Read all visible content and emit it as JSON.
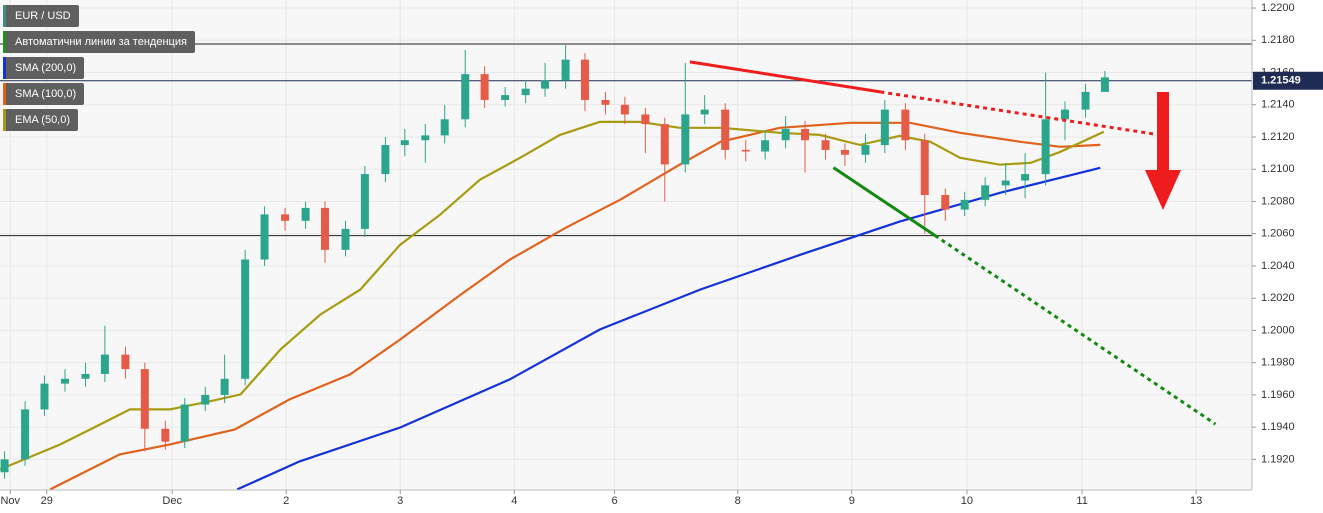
{
  "chart_data": {
    "type": "candlestick",
    "xlim": [
      0,
      10.98
    ],
    "ylim": [
      1.1901,
      1.2205
    ],
    "grid": true,
    "xticks": [
      {
        "value": 0.09,
        "label": "Nov"
      },
      {
        "value": 0.41,
        "label": "29"
      },
      {
        "value": 1.51,
        "label": "Dec"
      },
      {
        "value": 2.51,
        "label": "2"
      },
      {
        "value": 3.51,
        "label": "3"
      },
      {
        "value": 4.51,
        "label": "4"
      },
      {
        "value": 5.39,
        "label": "6"
      },
      {
        "value": 6.47,
        "label": "8"
      },
      {
        "value": 7.47,
        "label": "9"
      },
      {
        "value": 8.48,
        "label": "10"
      },
      {
        "value": 9.49,
        "label": "11"
      },
      {
        "value": 10.49,
        "label": "13"
      }
    ],
    "yticks": [
      {
        "value": 1.192,
        "label": "1.1920"
      },
      {
        "value": 1.194,
        "label": "1.1940"
      },
      {
        "value": 1.196,
        "label": "1.1960"
      },
      {
        "value": 1.198,
        "label": "1.1980"
      },
      {
        "value": 1.2,
        "label": "1.2000"
      },
      {
        "value": 1.202,
        "label": "1.2020"
      },
      {
        "value": 1.204,
        "label": "1.2040"
      },
      {
        "value": 1.206,
        "label": "1.2060"
      },
      {
        "value": 1.208,
        "label": "1.2080"
      },
      {
        "value": 1.21,
        "label": "1.2100"
      },
      {
        "value": 1.212,
        "label": "1.2120"
      },
      {
        "value": 1.214,
        "label": "1.2140"
      },
      {
        "value": 1.216,
        "label": "1.2160"
      },
      {
        "value": 1.218,
        "label": "1.2180"
      },
      {
        "value": 1.22,
        "label": "1.2200"
      }
    ],
    "symbol": {
      "name": "EUR / USD",
      "color": "#3f8f80"
    },
    "trend_study": {
      "name": "Автоматични линии за тенденция",
      "color": "#1f8f1f"
    },
    "last_price": 1.21549,
    "last_price_color": "#1e2b52",
    "levels": [
      1.21777,
      1.20588
    ],
    "level_color": "#222222",
    "up_color": "#2ca58d",
    "down_color": "#e55b48",
    "candles": {
      "x": [
        0.04,
        0.22,
        0.39,
        0.57,
        0.75,
        0.92,
        1.1,
        1.27,
        1.45,
        1.62,
        1.8,
        1.97,
        2.15,
        2.32,
        2.5,
        2.68,
        2.85,
        3.03,
        3.2,
        3.38,
        3.55,
        3.73,
        3.9,
        4.08,
        4.25,
        4.43,
        4.61,
        4.78,
        4.96,
        5.13,
        5.31,
        5.48,
        5.66,
        5.83,
        6.01,
        6.18,
        6.36,
        6.54,
        6.71,
        6.89,
        7.06,
        7.24,
        7.41,
        7.59,
        7.76,
        7.94,
        8.11,
        8.29,
        8.46,
        8.64,
        8.82,
        8.99,
        9.17,
        9.34,
        9.52,
        9.69
      ],
      "open": [
        1.1912,
        1.192,
        1.1951,
        1.1967,
        1.197,
        1.1973,
        1.1985,
        1.1976,
        1.1939,
        1.1931,
        1.1954,
        1.196,
        1.197,
        1.2044,
        1.2072,
        1.2068,
        1.2076,
        1.205,
        1.2063,
        1.2097,
        1.2115,
        1.2118,
        1.2121,
        1.2131,
        1.2159,
        1.2143,
        1.2146,
        1.215,
        1.2155,
        1.2168,
        1.2143,
        1.214,
        1.2134,
        1.2128,
        1.2103,
        1.2134,
        1.2137,
        1.2112,
        1.2111,
        1.2118,
        1.2125,
        1.2118,
        1.2112,
        1.2109,
        1.2115,
        1.2137,
        1.2118,
        1.2084,
        1.2075,
        1.2081,
        1.209,
        1.2093,
        1.2097,
        1.2131,
        1.2137,
        1.2148
      ],
      "high": [
        1.1925,
        1.1956,
        1.1972,
        1.1976,
        1.198,
        1.2003,
        1.199,
        1.198,
        1.1944,
        1.1958,
        1.1965,
        1.1985,
        1.205,
        1.2077,
        1.2076,
        1.208,
        1.208,
        1.2068,
        1.2102,
        1.212,
        1.2125,
        1.2128,
        1.214,
        1.2174,
        1.2164,
        1.2151,
        1.2155,
        1.2166,
        1.2177,
        1.2172,
        1.2148,
        1.2145,
        1.2138,
        1.2132,
        1.2166,
        1.2146,
        1.2141,
        1.2118,
        1.2124,
        1.2133,
        1.213,
        1.2122,
        1.2116,
        1.2122,
        1.2143,
        1.2141,
        1.2122,
        1.2088,
        1.2086,
        1.2095,
        1.2104,
        1.211,
        1.216,
        1.2142,
        1.2153,
        1.2161
      ],
      "low": [
        1.1908,
        1.1916,
        1.1947,
        1.1962,
        1.1965,
        1.1968,
        1.197,
        1.1925,
        1.1926,
        1.1927,
        1.195,
        1.1955,
        1.1966,
        1.204,
        1.2062,
        1.2063,
        1.2042,
        1.2046,
        1.2058,
        1.2092,
        1.2108,
        1.2104,
        1.2116,
        1.2126,
        1.2138,
        1.2139,
        1.2141,
        1.2145,
        1.215,
        1.2136,
        1.2134,
        1.2128,
        1.211,
        1.208,
        1.2098,
        1.2128,
        1.2106,
        1.2105,
        1.2106,
        1.2113,
        1.2098,
        1.2106,
        1.2102,
        1.2104,
        1.211,
        1.2112,
        1.206,
        1.2068,
        1.2071,
        1.2077,
        1.2084,
        1.2082,
        1.209,
        1.2118,
        1.2132,
        1.215
      ],
      "close": [
        1.192,
        1.1951,
        1.1967,
        1.197,
        1.1973,
        1.1985,
        1.1976,
        1.1939,
        1.1931,
        1.1954,
        1.196,
        1.197,
        1.2044,
        1.2072,
        1.2068,
        1.2076,
        1.205,
        1.2063,
        1.2097,
        1.2115,
        1.2118,
        1.2121,
        1.2131,
        1.2159,
        1.2143,
        1.2146,
        1.215,
        1.2155,
        1.2168,
        1.2143,
        1.214,
        1.2134,
        1.2128,
        1.2103,
        1.2134,
        1.2137,
        1.2112,
        1.2111,
        1.2118,
        1.2125,
        1.2118,
        1.2112,
        1.2109,
        1.2115,
        1.2137,
        1.2118,
        1.2084,
        1.2075,
        1.2081,
        1.209,
        1.2093,
        1.2097,
        1.2131,
        1.2137,
        1.2148,
        1.2157
      ]
    },
    "series": [
      {
        "name": "SMA (200,0)",
        "color": "#1432d8",
        "x": [
          2.08,
          2.63,
          3.51,
          4.47,
          5.26,
          6.14,
          7.02,
          7.89,
          8.77,
          9.65
        ],
        "values": [
          1.19014,
          1.19188,
          1.19398,
          1.19696,
          1.20006,
          1.20253,
          1.2047,
          1.20675,
          1.20854,
          1.21009
        ]
      },
      {
        "name": "SMA (100,0)",
        "color": "#e0621c",
        "x": [
          0.44,
          1.05,
          1.49,
          2.06,
          2.54,
          3.07,
          3.51,
          4.04,
          4.47,
          4.96,
          5.44,
          5.96,
          6.32,
          6.84,
          7.46,
          7.98,
          8.42,
          8.95,
          9.3,
          9.65
        ],
        "values": [
          1.19014,
          1.19231,
          1.19293,
          1.19386,
          1.19572,
          1.19727,
          1.19944,
          1.20222,
          1.20439,
          1.20637,
          1.20811,
          1.21028,
          1.2117,
          1.21257,
          1.21288,
          1.21288,
          1.21226,
          1.2117,
          1.21139,
          1.21151
        ]
      },
      {
        "name": "EMA (50,0)",
        "color": "#a89b12",
        "x": [
          0,
          0.53,
          0.88,
          1.14,
          1.49,
          1.84,
          2.11,
          2.46,
          2.81,
          3.16,
          3.51,
          3.86,
          4.21,
          4.56,
          4.91,
          5.26,
          5.61,
          5.96,
          6.32,
          6.84,
          7.19,
          7.54,
          7.89,
          8.16,
          8.42,
          8.77,
          9.04,
          9.3,
          9.68
        ],
        "values": [
          1.19138,
          1.19293,
          1.19417,
          1.1951,
          1.1951,
          1.1956,
          1.19603,
          1.19882,
          1.20099,
          1.20253,
          1.20532,
          1.20718,
          1.20935,
          1.21071,
          1.21213,
          1.21294,
          1.21294,
          1.21257,
          1.21257,
          1.21226,
          1.21213,
          1.21151,
          1.21207,
          1.2117,
          1.21071,
          1.21028,
          1.2104,
          1.21108,
          1.21232
        ]
      }
    ],
    "trendlines": [
      {
        "color": "#ee1c1c",
        "style": "solid",
        "x": [
          6.05,
          7.72
        ],
        "values": [
          1.21666,
          1.2148
        ]
      },
      {
        "color": "#ee1c1c",
        "style": "dotted",
        "x": [
          7.72,
          10.16
        ],
        "values": [
          1.2148,
          1.21214
        ]
      },
      {
        "color": "#128a12",
        "style": "solid",
        "x": [
          7.31,
          8.2
        ],
        "values": [
          1.2101,
          1.20589
        ]
      },
      {
        "color": "#128a12",
        "style": "dotted",
        "x": [
          8.2,
          10.66
        ],
        "values": [
          1.20589,
          1.19419
        ]
      }
    ]
  }
}
